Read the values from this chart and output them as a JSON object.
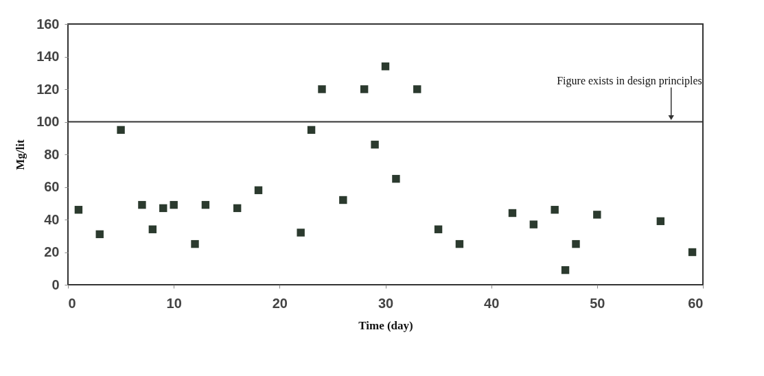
{
  "chart_data": {
    "type": "scatter",
    "xlabel": "Time (day)",
    "ylabel": "Mg/lit",
    "x": [
      1,
      3,
      5,
      7,
      8,
      9,
      10,
      12,
      13,
      16,
      18,
      22,
      23,
      24,
      26,
      28,
      29,
      30,
      31,
      33,
      35,
      37,
      42,
      44,
      46,
      47,
      48,
      50,
      56,
      59
    ],
    "series": [
      {
        "color": "#2b3a2e",
        "values": [
          46,
          31,
          95,
          49,
          34,
          47,
          49,
          25,
          49,
          47,
          58,
          32,
          95,
          120,
          52,
          120,
          86,
          134,
          65,
          120,
          34,
          25,
          44,
          37,
          46,
          9,
          25,
          43,
          39,
          20
        ]
      }
    ],
    "xlim": [
      0,
      60
    ],
    "xticks": [
      0,
      10,
      20,
      30,
      40,
      50,
      60
    ],
    "ylim": [
      0,
      160
    ],
    "yticks": [
      0,
      20,
      40,
      60,
      80,
      100,
      120,
      140,
      160
    ],
    "ref_lines": [
      {
        "axis": "y",
        "value": 100,
        "label": null,
        "color": "#333333"
      }
    ],
    "annotations": [
      {
        "text": "Figure exists in design principles",
        "x": 57,
        "y": 100
      }
    ],
    "marker": "square",
    "grid": false
  }
}
